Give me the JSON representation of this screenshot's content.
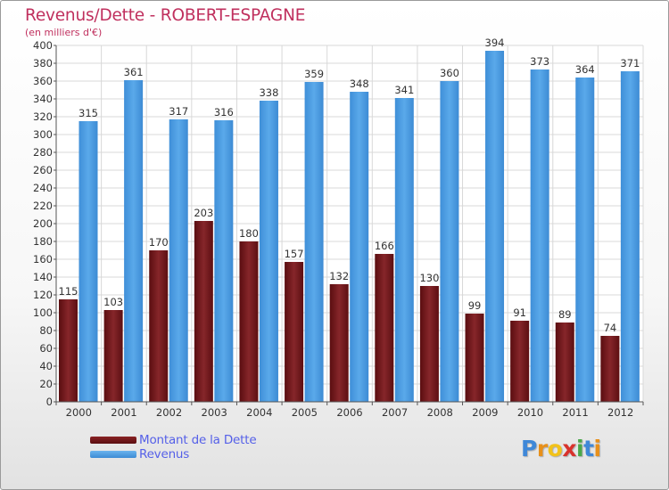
{
  "title": "Revenus/Dette - ROBERT-ESPAGNE",
  "subtitle": "(en milliers d'€)",
  "legend": {
    "dette_label": "Montant de la Dette",
    "revenus_label": "Revenus"
  },
  "logo": {
    "letters": [
      "P",
      "r",
      "o",
      "x",
      "i",
      "t",
      "i"
    ],
    "colors": [
      "#3f88d8",
      "#e8901a",
      "#f2c21a",
      "#d8322c",
      "#4aa84a",
      "#3f88d8",
      "#e8901a"
    ]
  },
  "colors": {
    "dette": "#7a1a1a",
    "revenus": "#4a9de0",
    "grid": "#d8d8d8",
    "axis_text": "#333333",
    "title": "#c0305e",
    "legend_text": "#5560e8"
  },
  "chart_data": {
    "type": "bar",
    "title": "Revenus/Dette - ROBERT-ESPAGNE",
    "ylabel": "(en milliers d'€)",
    "xlabel": "",
    "categories": [
      "2000",
      "2001",
      "2002",
      "2003",
      "2004",
      "2005",
      "2006",
      "2007",
      "2008",
      "2009",
      "2010",
      "2011",
      "2012"
    ],
    "series": [
      {
        "name": "Montant de la Dette",
        "values": [
          115,
          103,
          170,
          203,
          180,
          157,
          132,
          166,
          130,
          99,
          91,
          89,
          74
        ]
      },
      {
        "name": "Revenus",
        "values": [
          315,
          361,
          317,
          316,
          338,
          359,
          348,
          341,
          360,
          394,
          373,
          364,
          371
        ]
      }
    ],
    "ylim": [
      0,
      400
    ],
    "yticks": [
      0,
      20,
      40,
      60,
      80,
      100,
      120,
      140,
      160,
      180,
      200,
      220,
      240,
      260,
      280,
      300,
      320,
      340,
      360,
      380,
      400
    ],
    "grid": true,
    "legend_position": "bottom-left"
  }
}
